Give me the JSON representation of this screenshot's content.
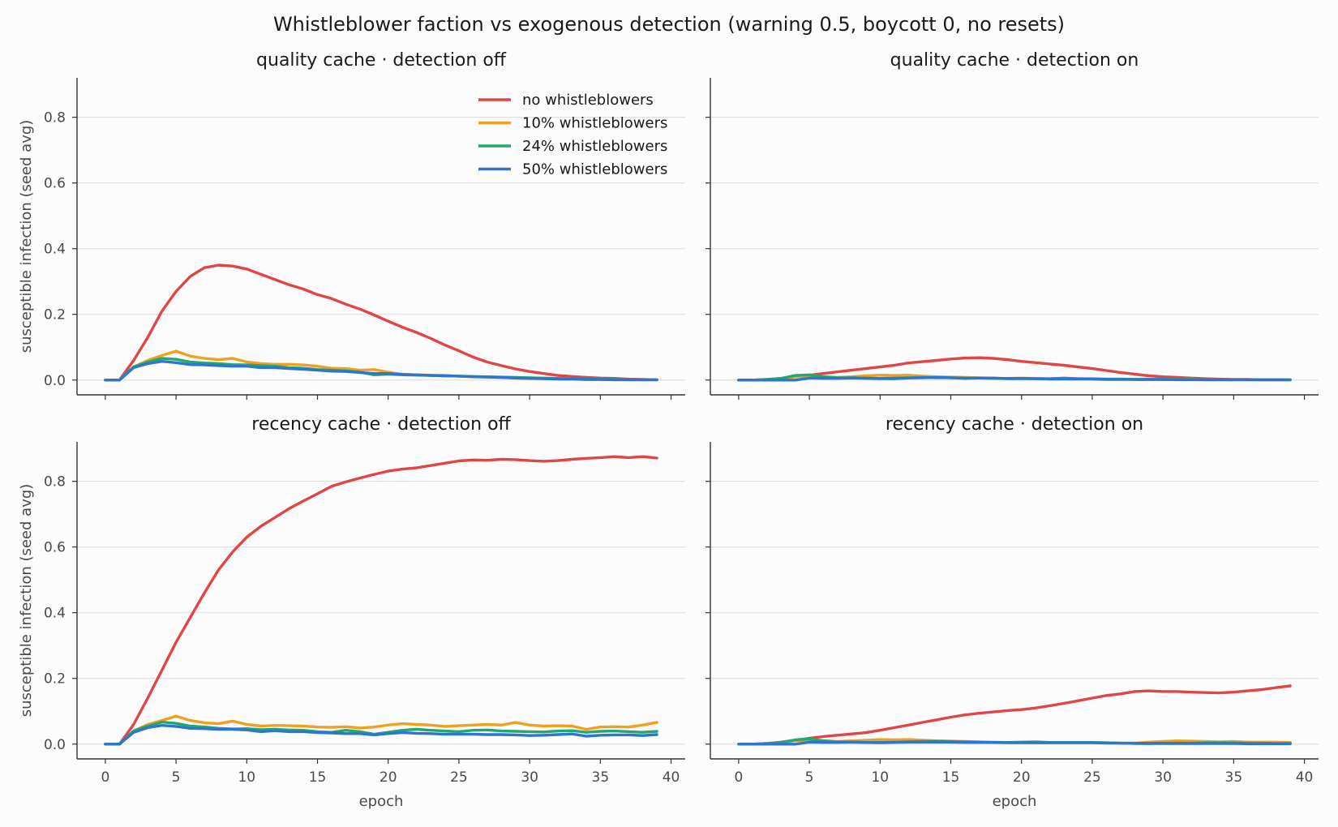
{
  "figure": {
    "suptitle": "Whistleblower faction vs exogenous detection (warning 0.5, boycott 0, no resets)"
  },
  "colors": {
    "no_whistleblowers": "#e04646",
    "wb10": "#f0a01e",
    "wb24": "#20a870",
    "wb50": "#2c75d0",
    "grid": "#e0e0e0",
    "axis": "#333333"
  },
  "legend": [
    {
      "label": "no whistleblowers",
      "color": "#e04646"
    },
    {
      "label": "10% whistleblowers",
      "color": "#f0a01e"
    },
    {
      "label": "24% whistleblowers",
      "color": "#20a870"
    },
    {
      "label": "50% whistleblowers",
      "color": "#2c75d0"
    }
  ],
  "chart_data": [
    {
      "type": "line",
      "title": "quality cache · detection off",
      "xlabel": "",
      "ylabel": "susceptible infection (seed avg)",
      "xlim": [
        -2,
        41
      ],
      "ylim": [
        -0.045,
        0.92
      ],
      "xticks": [
        "0",
        "5",
        "10",
        "15",
        "20",
        "25",
        "30",
        "35",
        "40"
      ],
      "yticks": [
        "0.0",
        "0.2",
        "0.4",
        "0.6",
        "0.8"
      ],
      "grid": "horizontal",
      "legend": "top-right",
      "x_start": 0,
      "series": [
        {
          "name": "no whistleblowers",
          "color": "#e04646",
          "values": [
            0,
            0,
            0.06,
            0.13,
            0.21,
            0.27,
            0.315,
            0.342,
            0.35,
            0.347,
            0.338,
            0.322,
            0.306,
            0.29,
            0.277,
            0.26,
            0.248,
            0.231,
            0.216,
            0.198,
            0.179,
            0.161,
            0.145,
            0.127,
            0.107,
            0.089,
            0.07,
            0.055,
            0.044,
            0.034,
            0.026,
            0.02,
            0.014,
            0.011,
            0.008,
            0.006,
            0.005,
            0.003,
            0.002,
            0.001
          ]
        },
        {
          "name": "10% whistleblowers",
          "color": "#f0a01e",
          "values": [
            0,
            0,
            0.04,
            0.06,
            0.075,
            0.088,
            0.073,
            0.066,
            0.062,
            0.066,
            0.055,
            0.05,
            0.048,
            0.048,
            0.046,
            0.042,
            0.036,
            0.035,
            0.03,
            0.032,
            0.024,
            0.018,
            0.016,
            0.015,
            0.014,
            0.012,
            0.01,
            0.009,
            0.008,
            0.006,
            0.005,
            0.004,
            0.003,
            0.003,
            0.002,
            0.002,
            0.001,
            0.001,
            0.001,
            0.001
          ]
        },
        {
          "name": "24% whistleblowers",
          "color": "#20a870",
          "values": [
            0,
            0,
            0.04,
            0.055,
            0.066,
            0.063,
            0.055,
            0.052,
            0.05,
            0.047,
            0.046,
            0.044,
            0.042,
            0.038,
            0.036,
            0.032,
            0.03,
            0.028,
            0.024,
            0.016,
            0.018,
            0.016,
            0.015,
            0.014,
            0.013,
            0.012,
            0.011,
            0.01,
            0.009,
            0.008,
            0.007,
            0.006,
            0.005,
            0.004,
            0.003,
            0.002,
            0.002,
            0.001,
            0.001,
            0.001
          ]
        },
        {
          "name": "50% whistleblowers",
          "color": "#2c75d0",
          "values": [
            0,
            0,
            0.038,
            0.05,
            0.057,
            0.053,
            0.047,
            0.046,
            0.044,
            0.042,
            0.042,
            0.038,
            0.038,
            0.035,
            0.033,
            0.03,
            0.027,
            0.026,
            0.023,
            0.02,
            0.02,
            0.017,
            0.016,
            0.014,
            0.013,
            0.012,
            0.01,
            0.009,
            0.008,
            0.006,
            0.005,
            0.004,
            0.003,
            0.003,
            0.002,
            0.002,
            0.001,
            0.001,
            0.001,
            0.001
          ]
        }
      ]
    },
    {
      "type": "line",
      "title": "quality cache · detection on",
      "xlabel": "",
      "ylabel": "",
      "xlim": [
        -2,
        41
      ],
      "ylim": [
        -0.045,
        0.92
      ],
      "xticks": [
        "0",
        "5",
        "10",
        "15",
        "20",
        "25",
        "30",
        "35",
        "40"
      ],
      "yticks": [],
      "grid": "horizontal",
      "x_start": 0,
      "series": [
        {
          "name": "no whistleblowers",
          "color": "#e04646",
          "values": [
            0,
            0,
            0.002,
            0.005,
            0.01,
            0.015,
            0.02,
            0.025,
            0.03,
            0.035,
            0.04,
            0.045,
            0.052,
            0.056,
            0.06,
            0.064,
            0.067,
            0.068,
            0.066,
            0.062,
            0.057,
            0.053,
            0.049,
            0.045,
            0.04,
            0.035,
            0.029,
            0.023,
            0.018,
            0.013,
            0.01,
            0.008,
            0.006,
            0.004,
            0.003,
            0.002,
            0.002,
            0.001,
            0.001,
            0.001
          ]
        },
        {
          "name": "10% whistleblowers",
          "color": "#f0a01e",
          "values": [
            0,
            0,
            0.002,
            0.004,
            0.01,
            0.012,
            0.01,
            0.008,
            0.01,
            0.013,
            0.015,
            0.014,
            0.015,
            0.012,
            0.01,
            0.009,
            0.008,
            0.007,
            0.006,
            0.005,
            0.006,
            0.005,
            0.004,
            0.004,
            0.004,
            0.003,
            0.003,
            0.003,
            0.002,
            0.002,
            0.002,
            0.002,
            0.002,
            0.001,
            0.001,
            0.001,
            0.001,
            0.001,
            0.001,
            0.001
          ]
        },
        {
          "name": "24% whistleblowers",
          "color": "#20a870",
          "values": [
            0,
            0,
            0.002,
            0.005,
            0.014,
            0.016,
            0.01,
            0.007,
            0.007,
            0.006,
            0.005,
            0.006,
            0.007,
            0.008,
            0.007,
            0.007,
            0.006,
            0.006,
            0.005,
            0.005,
            0.005,
            0.004,
            0.004,
            0.006,
            0.004,
            0.004,
            0.003,
            0.003,
            0.002,
            0.002,
            0.002,
            0.002,
            0.002,
            0.001,
            0.001,
            0.001,
            0.001,
            0.001,
            0.001,
            0.001
          ]
        },
        {
          "name": "50% whistleblowers",
          "color": "#2c75d0",
          "values": [
            0,
            0,
            0,
            0,
            0,
            0.006,
            0.005,
            0.005,
            0.006,
            0.005,
            0.004,
            0.004,
            0.006,
            0.007,
            0.008,
            0.007,
            0.005,
            0.006,
            0.006,
            0.004,
            0.004,
            0.004,
            0.003,
            0.003,
            0.003,
            0.003,
            0.002,
            0.002,
            0.002,
            0.002,
            0.002,
            0.001,
            0.001,
            0.001,
            0.001,
            0.001,
            0.001,
            0.001,
            0.001,
            0.001
          ]
        }
      ]
    },
    {
      "type": "line",
      "title": "recency cache · detection off",
      "xlabel": "epoch",
      "ylabel": "susceptible infection (seed avg)",
      "xlim": [
        -2,
        41
      ],
      "ylim": [
        -0.045,
        0.92
      ],
      "xticks": [
        "0",
        "5",
        "10",
        "15",
        "20",
        "25",
        "30",
        "35",
        "40"
      ],
      "yticks": [
        "0.0",
        "0.2",
        "0.4",
        "0.6",
        "0.8"
      ],
      "grid": "horizontal",
      "x_start": 0,
      "series": [
        {
          "name": "no whistleblowers",
          "color": "#e04646",
          "values": [
            0,
            0,
            0.06,
            0.14,
            0.225,
            0.31,
            0.385,
            0.46,
            0.53,
            0.585,
            0.63,
            0.663,
            0.69,
            0.717,
            0.74,
            0.762,
            0.785,
            0.798,
            0.81,
            0.821,
            0.831,
            0.837,
            0.841,
            0.848,
            0.855,
            0.862,
            0.865,
            0.864,
            0.867,
            0.866,
            0.863,
            0.861,
            0.863,
            0.867,
            0.87,
            0.872,
            0.875,
            0.872,
            0.875,
            0.871
          ]
        },
        {
          "name": "10% whistleblowers",
          "color": "#f0a01e",
          "values": [
            0,
            0,
            0.04,
            0.06,
            0.072,
            0.085,
            0.072,
            0.065,
            0.062,
            0.07,
            0.06,
            0.055,
            0.057,
            0.056,
            0.055,
            0.052,
            0.051,
            0.053,
            0.049,
            0.052,
            0.058,
            0.062,
            0.06,
            0.058,
            0.054,
            0.056,
            0.058,
            0.06,
            0.058,
            0.066,
            0.058,
            0.055,
            0.056,
            0.055,
            0.045,
            0.052,
            0.053,
            0.052,
            0.058,
            0.066
          ]
        },
        {
          "name": "24% whistleblowers",
          "color": "#20a870",
          "values": [
            0,
            0,
            0.04,
            0.055,
            0.067,
            0.063,
            0.055,
            0.052,
            0.048,
            0.046,
            0.047,
            0.044,
            0.045,
            0.043,
            0.042,
            0.038,
            0.036,
            0.042,
            0.038,
            0.03,
            0.036,
            0.042,
            0.045,
            0.042,
            0.04,
            0.038,
            0.042,
            0.043,
            0.04,
            0.039,
            0.038,
            0.037,
            0.04,
            0.041,
            0.036,
            0.039,
            0.04,
            0.038,
            0.036,
            0.039
          ]
        },
        {
          "name": "50% whistleblowers",
          "color": "#2c75d0",
          "values": [
            0,
            0,
            0.036,
            0.05,
            0.057,
            0.054,
            0.048,
            0.047,
            0.045,
            0.045,
            0.043,
            0.038,
            0.041,
            0.038,
            0.038,
            0.035,
            0.034,
            0.032,
            0.032,
            0.028,
            0.032,
            0.035,
            0.033,
            0.032,
            0.03,
            0.03,
            0.03,
            0.029,
            0.029,
            0.028,
            0.026,
            0.027,
            0.029,
            0.031,
            0.024,
            0.027,
            0.028,
            0.028,
            0.026,
            0.029
          ]
        }
      ]
    },
    {
      "type": "line",
      "title": "recency cache · detection on",
      "xlabel": "epoch",
      "ylabel": "",
      "xlim": [
        -2,
        41
      ],
      "ylim": [
        -0.045,
        0.92
      ],
      "xticks": [
        "0",
        "5",
        "10",
        "15",
        "20",
        "25",
        "30",
        "35",
        "40"
      ],
      "yticks": [],
      "grid": "horizontal",
      "x_start": 0,
      "series": [
        {
          "name": "no whistleblowers",
          "color": "#e04646",
          "values": [
            0,
            0,
            0.002,
            0.006,
            0.012,
            0.018,
            0.023,
            0.027,
            0.031,
            0.035,
            0.042,
            0.05,
            0.058,
            0.066,
            0.074,
            0.082,
            0.089,
            0.094,
            0.098,
            0.102,
            0.105,
            0.11,
            0.117,
            0.124,
            0.132,
            0.14,
            0.148,
            0.153,
            0.16,
            0.162,
            0.16,
            0.16,
            0.158,
            0.157,
            0.156,
            0.158,
            0.162,
            0.166,
            0.172,
            0.177
          ]
        },
        {
          "name": "10% whistleblowers",
          "color": "#f0a01e",
          "values": [
            0,
            0,
            0.002,
            0.005,
            0.01,
            0.012,
            0.01,
            0.008,
            0.01,
            0.012,
            0.014,
            0.013,
            0.014,
            0.012,
            0.01,
            0.009,
            0.008,
            0.007,
            0.006,
            0.005,
            0.005,
            0.004,
            0.004,
            0.004,
            0.004,
            0.004,
            0.004,
            0.003,
            0.003,
            0.006,
            0.008,
            0.01,
            0.009,
            0.008,
            0.007,
            0.008,
            0.006,
            0.006,
            0.006,
            0.005
          ]
        },
        {
          "name": "24% whistleblowers",
          "color": "#20a870",
          "values": [
            0,
            0,
            0.002,
            0.005,
            0.013,
            0.016,
            0.01,
            0.007,
            0.006,
            0.005,
            0.005,
            0.006,
            0.007,
            0.008,
            0.009,
            0.008,
            0.007,
            0.006,
            0.005,
            0.005,
            0.006,
            0.007,
            0.005,
            0.005,
            0.005,
            0.005,
            0.004,
            0.003,
            0.003,
            0.002,
            0.003,
            0.003,
            0.003,
            0.004,
            0.004,
            0.004,
            0.003,
            0.003,
            0.002,
            0.002
          ]
        },
        {
          "name": "50% whistleblowers",
          "color": "#2c75d0",
          "values": [
            0,
            0,
            0,
            0,
            0,
            0.006,
            0.005,
            0.005,
            0.006,
            0.005,
            0.004,
            0.005,
            0.006,
            0.006,
            0.006,
            0.006,
            0.005,
            0.005,
            0.005,
            0.004,
            0.004,
            0.004,
            0.004,
            0.004,
            0.004,
            0.004,
            0.003,
            0.003,
            0.002,
            0.002,
            0.002,
            0.002,
            0.002,
            0.002,
            0.002,
            0.002,
            0.001,
            0.001,
            0.001,
            0.001
          ]
        }
      ]
    }
  ]
}
